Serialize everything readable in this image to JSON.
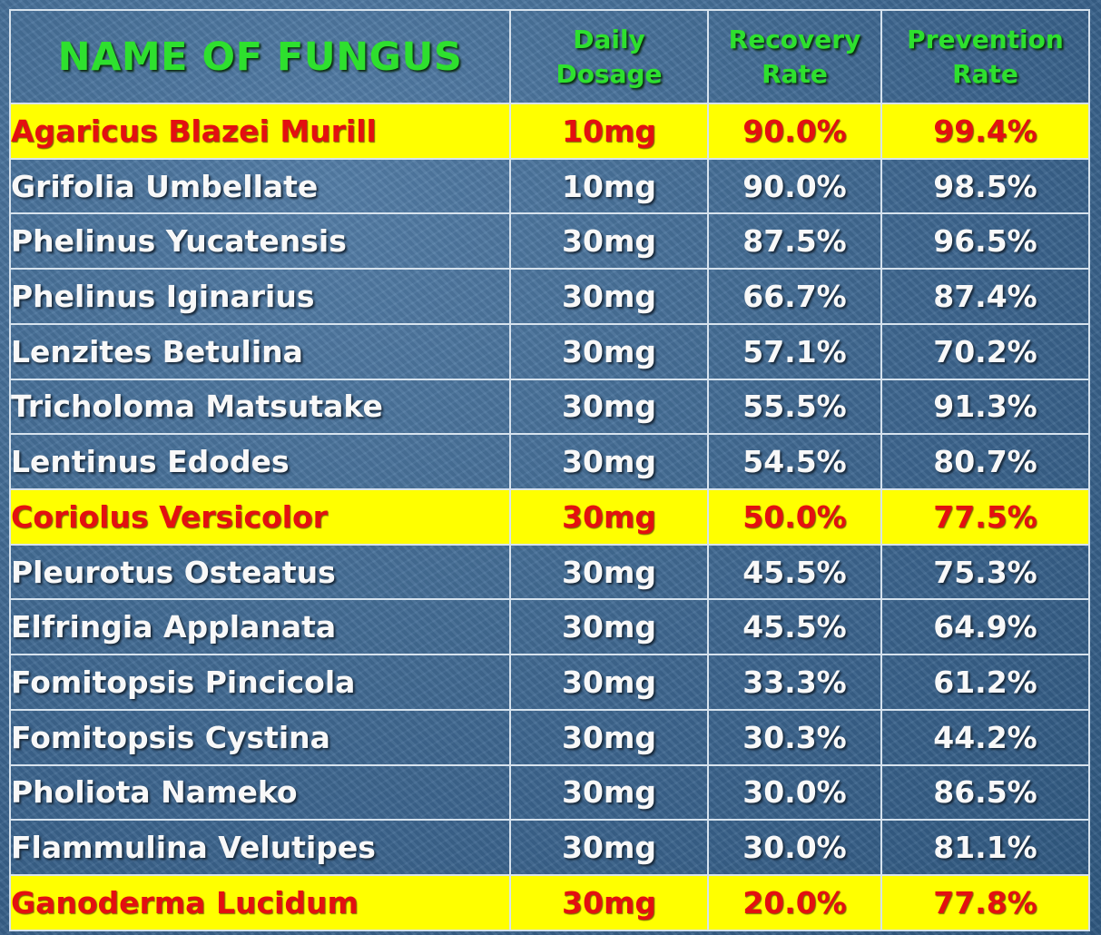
{
  "chart_data": {
    "type": "table",
    "columns": [
      "NAME OF FUNGUS",
      "Daily Dosage",
      "Recovery Rate",
      "Prevention Rate"
    ],
    "header": {
      "name": "NAME OF FUNGUS",
      "dosage": [
        "Daily",
        "Dosage"
      ],
      "recovery": [
        "Recovery",
        "Rate"
      ],
      "prevention": [
        "Prevention",
        "Rate"
      ]
    },
    "rows": [
      {
        "name": "Agaricus Blazei Murill",
        "dosage": "10mg",
        "recovery": "90.0%",
        "prevention": "99.4%",
        "highlight": true
      },
      {
        "name": "Grifolia Umbellate",
        "dosage": "10mg",
        "recovery": "90.0%",
        "prevention": "98.5%",
        "highlight": false
      },
      {
        "name": "Phelinus Yucatensis",
        "dosage": "30mg",
        "recovery": "87.5%",
        "prevention": "96.5%",
        "highlight": false
      },
      {
        "name": "Phelinus Iginarius",
        "dosage": "30mg",
        "recovery": "66.7%",
        "prevention": "87.4%",
        "highlight": false
      },
      {
        "name": "Lenzites Betulina",
        "dosage": "30mg",
        "recovery": "57.1%",
        "prevention": "70.2%",
        "highlight": false
      },
      {
        "name": "Tricholoma Matsutake",
        "dosage": "30mg",
        "recovery": "55.5%",
        "prevention": "91.3%",
        "highlight": false
      },
      {
        "name": "Lentinus Edodes",
        "dosage": "30mg",
        "recovery": "54.5%",
        "prevention": "80.7%",
        "highlight": false
      },
      {
        "name": "Coriolus Versicolor",
        "dosage": "30mg",
        "recovery": "50.0%",
        "prevention": "77.5%",
        "highlight": true
      },
      {
        "name": "Pleurotus Osteatus",
        "dosage": "30mg",
        "recovery": "45.5%",
        "prevention": "75.3%",
        "highlight": false
      },
      {
        "name": "Elfringia Applanata",
        "dosage": "30mg",
        "recovery": "45.5%",
        "prevention": "64.9%",
        "highlight": false
      },
      {
        "name": "Fomitopsis Pincicola",
        "dosage": "30mg",
        "recovery": "33.3%",
        "prevention": "61.2%",
        "highlight": false
      },
      {
        "name": "Fomitopsis Cystina",
        "dosage": "30mg",
        "recovery": "30.3%",
        "prevention": "44.2%",
        "highlight": false
      },
      {
        "name": "Pholiota Nameko",
        "dosage": "30mg",
        "recovery": "30.0%",
        "prevention": "86.5%",
        "highlight": false
      },
      {
        "name": "Flammulina Velutipes",
        "dosage": "30mg",
        "recovery": "30.0%",
        "prevention": "81.1%",
        "highlight": false
      },
      {
        "name": "Ganoderma Lucidum",
        "dosage": "30mg",
        "recovery": "20.0%",
        "prevention": "77.8%",
        "highlight": true
      }
    ]
  },
  "colors": {
    "background": "#3f6891",
    "header_text": "#2ee02e",
    "body_text": "#f8f8f8",
    "highlight_fill": "#ffff00",
    "highlight_text": "#e31010",
    "grid_line": "#d7e3ee"
  }
}
